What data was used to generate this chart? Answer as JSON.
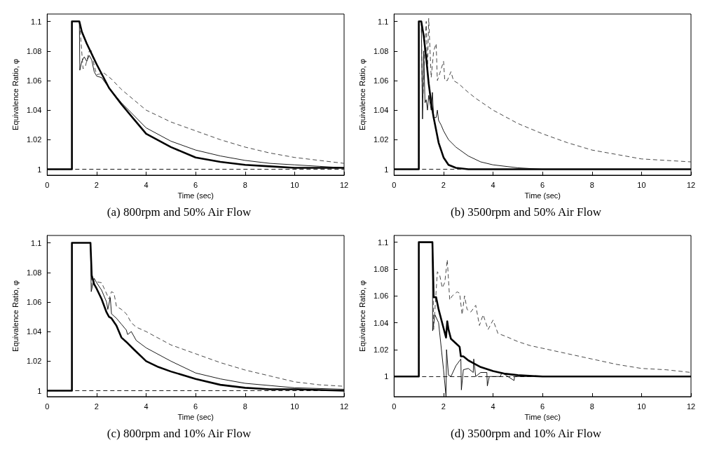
{
  "chart_data": [
    {
      "type": "line",
      "title": "(a) 800rpm and 50% Air Flow",
      "xlabel": "Time (sec)",
      "ylabel": "Equivalence Ratio, φ",
      "xlim": [
        0,
        12
      ],
      "xticks": [
        0,
        2,
        4,
        6,
        8,
        10,
        12
      ],
      "ylim": [
        0.996,
        1.105
      ],
      "yticks": [
        1,
        1.02,
        1.04,
        1.06,
        1.08,
        1.1
      ],
      "grid": false,
      "marker": "none",
      "ref_lines": [
        {
          "axis": "y",
          "value": 1,
          "color": "#000000",
          "line_style": "dashed"
        }
      ],
      "series": [
        {
          "color": "#000000",
          "line_style": "solid",
          "x": [
            0,
            1,
            1,
            1.3,
            1.4,
            1.6,
            1.8,
            2,
            2.5,
            3,
            3.5,
            4,
            5,
            6,
            7,
            8,
            9,
            10,
            11,
            12
          ],
          "values": [
            1,
            1,
            1.1,
            1.1,
            1.093,
            1.085,
            1.078,
            1.071,
            1.055,
            1.044,
            1.034,
            1.024,
            1.015,
            1.008,
            1.005,
            1.003,
            1.002,
            1.001,
            1.001,
            1.001
          ]
        },
        {
          "color": "#000000",
          "line_style": "solid",
          "x": [
            0,
            1,
            1,
            1.3,
            1.32,
            1.4,
            1.5,
            1.6,
            1.7,
            1.8,
            1.9,
            2,
            2.2,
            2.5,
            3,
            4,
            5,
            6,
            7,
            8,
            9,
            10,
            11,
            12
          ],
          "values": [
            1,
            1,
            1.1,
            1.1,
            1.067,
            1.073,
            1.076,
            1.073,
            1.077,
            1.074,
            1.066,
            1.063,
            1.062,
            1.055,
            1.045,
            1.028,
            1.019,
            1.013,
            1.009,
            1.006,
            1.004,
            1.003,
            1.002,
            1.001
          ]
        },
        {
          "color": "#333333",
          "line_style": "dashed",
          "x": [
            0,
            1,
            1,
            1.3,
            1.35,
            1.45,
            1.55,
            1.7,
            1.8,
            1.9,
            2,
            2.3,
            2.6,
            3,
            4,
            5,
            6,
            7,
            8,
            9,
            10,
            11,
            12
          ],
          "values": [
            1,
            1,
            1.1,
            1.1,
            1.09,
            1.068,
            1.07,
            1.08,
            1.08,
            1.07,
            1.064,
            1.065,
            1.061,
            1.054,
            1.04,
            1.032,
            1.026,
            1.02,
            1.015,
            1.011,
            1.008,
            1.006,
            1.004
          ]
        }
      ]
    },
    {
      "type": "line",
      "title": "(b) 3500rpm and 50% Air Flow",
      "xlabel": "Time (sec)",
      "ylabel": "Equivalence Ratio, φ",
      "xlim": [
        0,
        12
      ],
      "xticks": [
        0,
        2,
        4,
        6,
        8,
        10,
        12
      ],
      "ylim": [
        0.996,
        1.105
      ],
      "yticks": [
        1,
        1.02,
        1.04,
        1.06,
        1.08,
        1.1
      ],
      "grid": false,
      "marker": "none",
      "ref_lines": [
        {
          "axis": "y",
          "value": 1,
          "color": "#000000",
          "line_style": "dashed"
        }
      ],
      "series": [
        {
          "color": "#000000",
          "line_style": "solid",
          "x": [
            0,
            1,
            1,
            1.1,
            1.2,
            1.3,
            1.4,
            1.5,
            1.6,
            1.8,
            2,
            2.2,
            2.5,
            3,
            12
          ],
          "values": [
            1,
            1,
            1.1,
            1.1,
            1.09,
            1.075,
            1.058,
            1.045,
            1.035,
            1.018,
            1.008,
            1.003,
            1.001,
            1,
            1
          ]
        },
        {
          "color": "#000000",
          "line_style": "solid",
          "x": [
            0,
            1,
            1,
            1.1,
            1.15,
            1.2,
            1.25,
            1.3,
            1.35,
            1.4,
            1.5,
            1.55,
            1.6,
            1.7,
            1.75,
            1.8,
            1.9,
            2,
            2.2,
            2.5,
            3,
            3.5,
            4,
            5,
            6,
            12
          ],
          "values": [
            1,
            1,
            1.1,
            1.1,
            1.034,
            1.08,
            1.045,
            1.047,
            1.04,
            1.05,
            1.04,
            1.052,
            1.035,
            1.035,
            1.04,
            1.033,
            1.03,
            1.026,
            1.02,
            1.015,
            1.009,
            1.005,
            1.003,
            1.001,
            1,
            1
          ]
        },
        {
          "color": "#333333",
          "line_style": "dashed",
          "x": [
            0,
            1,
            1,
            1.1,
            1.15,
            1.25,
            1.3,
            1.35,
            1.4,
            1.5,
            1.6,
            1.7,
            1.75,
            1.85,
            2,
            2.05,
            2.15,
            2.3,
            2.4,
            2.6,
            3,
            3.3,
            4,
            5,
            6,
            7,
            8,
            9,
            10,
            11,
            12
          ],
          "values": [
            1,
            1,
            1.1,
            1.1,
            1.04,
            1.085,
            1.1,
            1.065,
            1.102,
            1.062,
            1.08,
            1.085,
            1.06,
            1.065,
            1.073,
            1.06,
            1.06,
            1.066,
            1.06,
            1.058,
            1.052,
            1.048,
            1.04,
            1.031,
            1.024,
            1.018,
            1.013,
            1.01,
            1.007,
            1.006,
            1.005
          ]
        }
      ]
    },
    {
      "type": "line",
      "title": "(c) 800rpm and 10% Air Flow",
      "xlabel": "Time (sec)",
      "ylabel": "Equivalence Ratio, φ",
      "xlim": [
        0,
        12
      ],
      "xticks": [
        0,
        2,
        4,
        6,
        8,
        10,
        12
      ],
      "ylim": [
        0.996,
        1.105
      ],
      "yticks": [
        1,
        1.02,
        1.04,
        1.06,
        1.08,
        1.1
      ],
      "grid": false,
      "marker": "none",
      "ref_lines": [
        {
          "axis": "y",
          "value": 1,
          "color": "#000000",
          "line_style": "dashed"
        }
      ],
      "series": [
        {
          "color": "#000000",
          "line_style": "solid",
          "x": [
            0,
            1,
            1,
            1.75,
            1.8,
            1.9,
            2,
            2.2,
            2.4,
            2.5,
            2.6,
            2.8,
            3,
            3.2,
            3.5,
            4,
            4.5,
            5,
            6,
            7,
            8,
            9,
            10,
            12
          ],
          "values": [
            1,
            1,
            1.1,
            1.1,
            1.078,
            1.072,
            1.069,
            1.062,
            1.053,
            1.05,
            1.049,
            1.044,
            1.036,
            1.033,
            1.028,
            1.02,
            1.016,
            1.013,
            1.008,
            1.004,
            1.002,
            1.001,
            1.001,
            1
          ]
        },
        {
          "color": "#000000",
          "line_style": "solid",
          "x": [
            0,
            1,
            1,
            1.75,
            1.78,
            1.82,
            1.9,
            2,
            2.2,
            2.4,
            2.45,
            2.55,
            2.6,
            2.8,
            3,
            3.2,
            3.25,
            3.4,
            3.6,
            4,
            5,
            6,
            7,
            8,
            10,
            12
          ],
          "values": [
            1,
            1,
            1.1,
            1.1,
            1.067,
            1.07,
            1.076,
            1.073,
            1.068,
            1.06,
            1.055,
            1.063,
            1.052,
            1.049,
            1.045,
            1.041,
            1.038,
            1.04,
            1.034,
            1.029,
            1.02,
            1.012,
            1.008,
            1.005,
            1.002,
            1.001
          ]
        },
        {
          "color": "#333333",
          "line_style": "dashed",
          "x": [
            0,
            1,
            1,
            1.75,
            1.8,
            1.9,
            2.2,
            2.5,
            2.6,
            2.7,
            2.8,
            3,
            3.2,
            3.4,
            3.6,
            4,
            5,
            6,
            7,
            8,
            9,
            10,
            11,
            12
          ],
          "values": [
            1,
            1,
            1.1,
            1.1,
            1.07,
            1.074,
            1.073,
            1.062,
            1.067,
            1.066,
            1.057,
            1.055,
            1.052,
            1.046,
            1.043,
            1.04,
            1.031,
            1.025,
            1.019,
            1.014,
            1.01,
            1.006,
            1.004,
            1.003
          ]
        }
      ]
    },
    {
      "type": "line",
      "title": "(d) 3500rpm and 10% Air Flow",
      "xlabel": "Time (sec)",
      "ylabel": "Equivalence Ratio, φ",
      "xlim": [
        0,
        12
      ],
      "xticks": [
        0,
        2,
        4,
        6,
        8,
        10,
        12
      ],
      "ylim": [
        0.985,
        1.105
      ],
      "yticks": [
        1,
        1.02,
        1.04,
        1.06,
        1.08,
        1.1
      ],
      "grid": false,
      "marker": "none",
      "ref_lines": [
        {
          "axis": "y",
          "value": 1,
          "color": "#000000",
          "line_style": "dashed"
        }
      ],
      "series": [
        {
          "color": "#000000",
          "line_style": "solid",
          "x": [
            0,
            1,
            1,
            1.55,
            1.6,
            1.7,
            1.8,
            2,
            2.1,
            2.15,
            2.2,
            2.3,
            2.6,
            2.65,
            2.7,
            2.8,
            3,
            3.2,
            3.5,
            4,
            4.5,
            5,
            6,
            12
          ],
          "values": [
            1,
            1,
            1.1,
            1.1,
            1.059,
            1.059,
            1.05,
            1.036,
            1.029,
            1.041,
            1.035,
            1.028,
            1.023,
            1.022,
            1.015,
            1.015,
            1.012,
            1.01,
            1.007,
            1.004,
            1.002,
            1.001,
            1,
            1
          ]
        },
        {
          "color": "#000000",
          "line_style": "solid",
          "x": [
            0,
            1,
            1,
            1.55,
            1.56,
            1.65,
            1.8,
            2,
            2.1,
            2.12,
            2.2,
            2.3,
            2.5,
            2.7,
            2.72,
            2.8,
            3,
            3.2,
            3.22,
            3.3,
            3.5,
            3.75,
            3.77,
            3.85,
            4.3,
            4.35,
            4.85,
            4.87,
            5,
            6,
            12
          ],
          "values": [
            1,
            1,
            1.1,
            1.1,
            1.034,
            1.046,
            1.04,
            1.005,
            0.985,
            1.02,
            1.001,
            1.0,
            1.008,
            1.013,
            0.99,
            1.005,
            1.006,
            1.003,
            1.013,
            1.0,
            1.003,
            1.003,
            0.993,
            1.0,
            1.0,
            1.003,
            0.997,
            1.0,
            1,
            1,
            1
          ]
        },
        {
          "color": "#333333",
          "line_style": "dashed",
          "x": [
            0,
            1,
            1,
            1.55,
            1.6,
            1.75,
            1.85,
            1.95,
            2.05,
            2.15,
            2.25,
            2.35,
            2.55,
            2.65,
            2.75,
            2.85,
            2.95,
            3.1,
            3.3,
            3.45,
            3.6,
            3.8,
            4,
            4.2,
            4.5,
            5,
            5.5,
            6,
            7,
            8,
            9,
            10,
            11,
            12
          ],
          "values": [
            1,
            1,
            1.1,
            1.1,
            1.035,
            1.078,
            1.075,
            1.066,
            1.07,
            1.087,
            1.057,
            1.06,
            1.063,
            1.062,
            1.046,
            1.06,
            1.05,
            1.048,
            1.053,
            1.038,
            1.046,
            1.035,
            1.042,
            1.032,
            1.03,
            1.026,
            1.023,
            1.021,
            1.017,
            1.013,
            1.009,
            1.006,
            1.005,
            1.003
          ]
        }
      ]
    }
  ]
}
